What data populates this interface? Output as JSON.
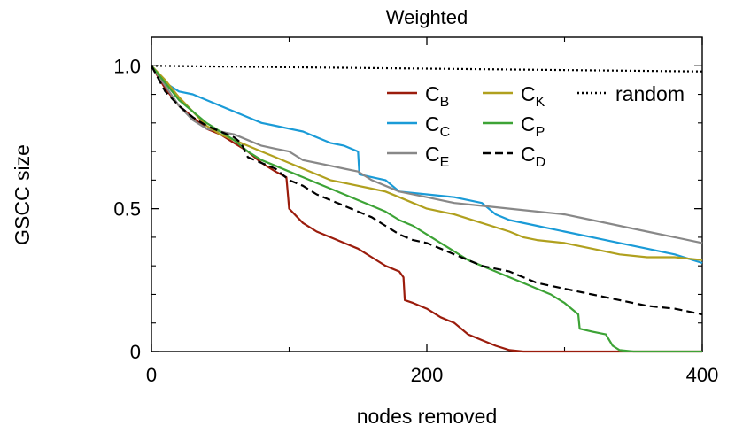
{
  "chart_data": {
    "type": "line",
    "title": "Weighted",
    "xlabel": "nodes removed",
    "ylabel": "GSCC size",
    "xlim": [
      0,
      400
    ],
    "ylim": [
      0,
      1.1
    ],
    "xticks": [
      0,
      200,
      400
    ],
    "xtick_labels": [
      "0",
      "200",
      "400"
    ],
    "yticks": [
      0,
      0.5,
      1.0
    ],
    "ytick_labels": [
      "0",
      "0.5",
      "1.0"
    ],
    "grid": false,
    "legend": "top-right",
    "series": [
      {
        "name": "C",
        "sub": "B",
        "color": "#9b1c0c",
        "dash": "",
        "points": [
          [
            0,
            1.0
          ],
          [
            10,
            0.92
          ],
          [
            20,
            0.86
          ],
          [
            30,
            0.82
          ],
          [
            40,
            0.78
          ],
          [
            50,
            0.76
          ],
          [
            60,
            0.73
          ],
          [
            70,
            0.7
          ],
          [
            80,
            0.66
          ],
          [
            90,
            0.63
          ],
          [
            98,
            0.61
          ],
          [
            100,
            0.5
          ],
          [
            110,
            0.45
          ],
          [
            120,
            0.42
          ],
          [
            130,
            0.4
          ],
          [
            140,
            0.38
          ],
          [
            150,
            0.36
          ],
          [
            160,
            0.33
          ],
          [
            170,
            0.3
          ],
          [
            180,
            0.28
          ],
          [
            183,
            0.26
          ],
          [
            184,
            0.18
          ],
          [
            190,
            0.17
          ],
          [
            200,
            0.15
          ],
          [
            210,
            0.12
          ],
          [
            220,
            0.1
          ],
          [
            230,
            0.06
          ],
          [
            240,
            0.04
          ],
          [
            250,
            0.02
          ],
          [
            260,
            0.005
          ],
          [
            270,
            0.0
          ],
          [
            300,
            0.0
          ],
          [
            400,
            0.0
          ]
        ]
      },
      {
        "name": "C",
        "sub": "C",
        "color": "#1a9bd7",
        "dash": "",
        "points": [
          [
            0,
            1.0
          ],
          [
            10,
            0.94
          ],
          [
            20,
            0.91
          ],
          [
            30,
            0.9
          ],
          [
            40,
            0.88
          ],
          [
            50,
            0.86
          ],
          [
            60,
            0.84
          ],
          [
            70,
            0.82
          ],
          [
            80,
            0.8
          ],
          [
            90,
            0.79
          ],
          [
            100,
            0.78
          ],
          [
            110,
            0.77
          ],
          [
            120,
            0.75
          ],
          [
            130,
            0.73
          ],
          [
            140,
            0.72
          ],
          [
            150,
            0.7
          ],
          [
            151,
            0.62
          ],
          [
            160,
            0.61
          ],
          [
            170,
            0.6
          ],
          [
            180,
            0.56
          ],
          [
            200,
            0.55
          ],
          [
            220,
            0.54
          ],
          [
            240,
            0.52
          ],
          [
            250,
            0.48
          ],
          [
            260,
            0.46
          ],
          [
            280,
            0.44
          ],
          [
            300,
            0.42
          ],
          [
            320,
            0.4
          ],
          [
            340,
            0.38
          ],
          [
            360,
            0.36
          ],
          [
            380,
            0.34
          ],
          [
            400,
            0.31
          ]
        ]
      },
      {
        "name": "C",
        "sub": "E",
        "color": "#888888",
        "dash": "",
        "points": [
          [
            0,
            1.0
          ],
          [
            10,
            0.93
          ],
          [
            20,
            0.86
          ],
          [
            30,
            0.81
          ],
          [
            40,
            0.78
          ],
          [
            50,
            0.77
          ],
          [
            60,
            0.76
          ],
          [
            70,
            0.74
          ],
          [
            80,
            0.72
          ],
          [
            90,
            0.71
          ],
          [
            100,
            0.7
          ],
          [
            110,
            0.67
          ],
          [
            120,
            0.66
          ],
          [
            130,
            0.65
          ],
          [
            140,
            0.64
          ],
          [
            150,
            0.63
          ],
          [
            160,
            0.6
          ],
          [
            170,
            0.58
          ],
          [
            180,
            0.56
          ],
          [
            200,
            0.54
          ],
          [
            220,
            0.52
          ],
          [
            240,
            0.51
          ],
          [
            260,
            0.5
          ],
          [
            280,
            0.49
          ],
          [
            300,
            0.48
          ],
          [
            320,
            0.46
          ],
          [
            340,
            0.44
          ],
          [
            360,
            0.42
          ],
          [
            380,
            0.4
          ],
          [
            400,
            0.38
          ]
        ]
      },
      {
        "name": "C",
        "sub": "K",
        "color": "#b0a01e",
        "dash": "",
        "points": [
          [
            0,
            1.0
          ],
          [
            10,
            0.95
          ],
          [
            20,
            0.89
          ],
          [
            30,
            0.84
          ],
          [
            40,
            0.79
          ],
          [
            50,
            0.76
          ],
          [
            60,
            0.74
          ],
          [
            70,
            0.72
          ],
          [
            80,
            0.7
          ],
          [
            90,
            0.68
          ],
          [
            100,
            0.66
          ],
          [
            110,
            0.64
          ],
          [
            120,
            0.62
          ],
          [
            130,
            0.6
          ],
          [
            140,
            0.59
          ],
          [
            150,
            0.58
          ],
          [
            160,
            0.57
          ],
          [
            170,
            0.56
          ],
          [
            180,
            0.54
          ],
          [
            190,
            0.52
          ],
          [
            200,
            0.5
          ],
          [
            220,
            0.48
          ],
          [
            240,
            0.45
          ],
          [
            260,
            0.42
          ],
          [
            270,
            0.4
          ],
          [
            280,
            0.39
          ],
          [
            300,
            0.38
          ],
          [
            320,
            0.36
          ],
          [
            340,
            0.34
          ],
          [
            360,
            0.33
          ],
          [
            380,
            0.33
          ],
          [
            400,
            0.32
          ]
        ]
      },
      {
        "name": "C",
        "sub": "P",
        "color": "#3da336",
        "dash": "",
        "points": [
          [
            0,
            1.0
          ],
          [
            10,
            0.94
          ],
          [
            20,
            0.88
          ],
          [
            30,
            0.84
          ],
          [
            40,
            0.8
          ],
          [
            50,
            0.77
          ],
          [
            60,
            0.74
          ],
          [
            70,
            0.7
          ],
          [
            80,
            0.67
          ],
          [
            90,
            0.65
          ],
          [
            100,
            0.63
          ],
          [
            110,
            0.61
          ],
          [
            120,
            0.59
          ],
          [
            130,
            0.57
          ],
          [
            140,
            0.55
          ],
          [
            150,
            0.53
          ],
          [
            160,
            0.51
          ],
          [
            170,
            0.49
          ],
          [
            180,
            0.46
          ],
          [
            190,
            0.44
          ],
          [
            200,
            0.41
          ],
          [
            210,
            0.38
          ],
          [
            220,
            0.35
          ],
          [
            230,
            0.32
          ],
          [
            240,
            0.3
          ],
          [
            250,
            0.28
          ],
          [
            260,
            0.26
          ],
          [
            270,
            0.24
          ],
          [
            280,
            0.22
          ],
          [
            290,
            0.2
          ],
          [
            300,
            0.17
          ],
          [
            310,
            0.13
          ],
          [
            311,
            0.08
          ],
          [
            320,
            0.07
          ],
          [
            330,
            0.06
          ],
          [
            335,
            0.02
          ],
          [
            340,
            0.005
          ],
          [
            350,
            0.0
          ],
          [
            400,
            0.0
          ]
        ]
      },
      {
        "name": "C",
        "sub": "D",
        "color": "#000000",
        "dash": "9,5",
        "points": [
          [
            0,
            1.0
          ],
          [
            10,
            0.91
          ],
          [
            20,
            0.86
          ],
          [
            30,
            0.82
          ],
          [
            40,
            0.79
          ],
          [
            50,
            0.77
          ],
          [
            60,
            0.75
          ],
          [
            65,
            0.73
          ],
          [
            70,
            0.68
          ],
          [
            80,
            0.66
          ],
          [
            90,
            0.64
          ],
          [
            100,
            0.6
          ],
          [
            110,
            0.58
          ],
          [
            120,
            0.55
          ],
          [
            130,
            0.53
          ],
          [
            140,
            0.51
          ],
          [
            150,
            0.49
          ],
          [
            160,
            0.47
          ],
          [
            170,
            0.44
          ],
          [
            180,
            0.41
          ],
          [
            190,
            0.39
          ],
          [
            200,
            0.38
          ],
          [
            210,
            0.36
          ],
          [
            220,
            0.34
          ],
          [
            230,
            0.32
          ],
          [
            240,
            0.3
          ],
          [
            250,
            0.29
          ],
          [
            260,
            0.28
          ],
          [
            270,
            0.26
          ],
          [
            280,
            0.24
          ],
          [
            290,
            0.23
          ],
          [
            300,
            0.22
          ],
          [
            320,
            0.2
          ],
          [
            340,
            0.18
          ],
          [
            360,
            0.16
          ],
          [
            380,
            0.15
          ],
          [
            400,
            0.13
          ]
        ]
      },
      {
        "name": "random",
        "sub": "",
        "color": "#000000",
        "dash": "2,3",
        "points": [
          [
            0,
            1.0
          ],
          [
            100,
            0.995
          ],
          [
            200,
            0.99
          ],
          [
            300,
            0.985
          ],
          [
            400,
            0.98
          ]
        ]
      }
    ]
  }
}
